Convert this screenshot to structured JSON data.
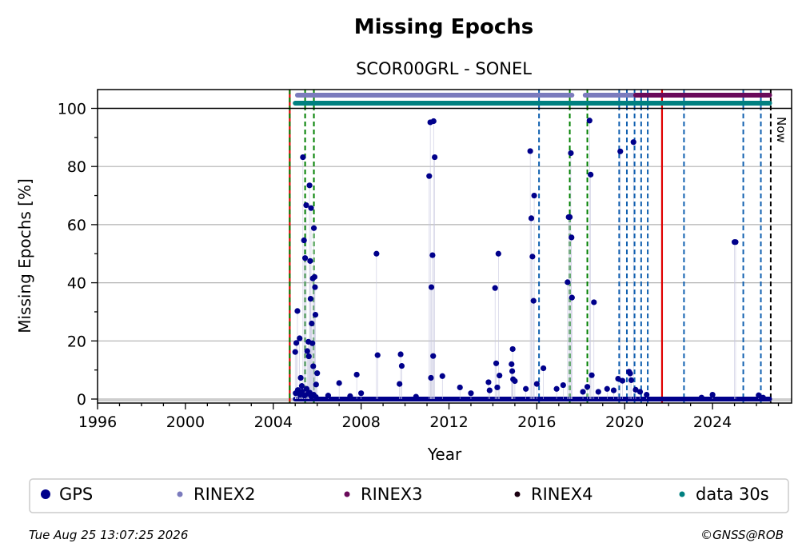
{
  "chart_data": {
    "type": "scatter",
    "title": "Missing Epochs",
    "subtitle": "SCOR00GRL - SONEL",
    "xlabel": "Year",
    "ylabel": "Missing Epochs [%]",
    "xlim": [
      1996,
      2027.6
    ],
    "ylim": [
      -1,
      107
    ],
    "x_ticks": [
      "1996",
      "2000",
      "2004",
      "2008",
      "2012",
      "2016",
      "2020",
      "2024"
    ],
    "y_ticks": [
      "0",
      "20",
      "40",
      "60",
      "80",
      "100"
    ],
    "grid": true,
    "legend_position": "bottom",
    "now_label": "Now",
    "now_year": 2026.65,
    "colors": {
      "gps": "#00008b",
      "rinex2": "#7b7bbd",
      "rinex3": "#6a0a5a",
      "rinex4": "#1a0010",
      "data30s": "#008080",
      "green_line": "#008000",
      "blue_line": "#1060b0",
      "red_line": "#e00000",
      "now_line": "#000000",
      "grid": "#b0b0b0"
    },
    "vlines": {
      "green_dashed": [
        2005.45,
        2005.85,
        2017.5,
        2018.3
      ],
      "blue_dashed": [
        2016.1,
        2019.75,
        2020.1,
        2020.45,
        2020.75,
        2021.05,
        2022.7,
        2025.4,
        2026.2
      ],
      "red_solid": [
        2004.75,
        2021.7
      ]
    },
    "bars": {
      "rinex2": [
        [
          2005.1,
          2017.6
        ],
        [
          2018.2,
          2021.7
        ]
      ],
      "rinex3": [
        [
          2020.5,
          2026.6
        ]
      ],
      "data30s": [
        [
          2005.0,
          2026.6
        ]
      ]
    },
    "series": [
      {
        "name": "GPS",
        "points": [
          [
            2005.0,
            16.2
          ],
          [
            2005.05,
            19.3
          ],
          [
            2005.1,
            30.3
          ],
          [
            2005.2,
            20.9
          ],
          [
            2005.25,
            7.3
          ],
          [
            2005.3,
            4.5
          ],
          [
            2005.35,
            83.2
          ],
          [
            2005.4,
            54.6
          ],
          [
            2005.45,
            48.5
          ],
          [
            2005.5,
            66.7
          ],
          [
            2005.55,
            16.5
          ],
          [
            2005.6,
            19.7
          ],
          [
            2005.62,
            14.7
          ],
          [
            2005.65,
            73.5
          ],
          [
            2005.68,
            47.5
          ],
          [
            2005.7,
            34.5
          ],
          [
            2005.72,
            65.7
          ],
          [
            2005.75,
            26.0
          ],
          [
            2005.78,
            19.2
          ],
          [
            2005.8,
            41.5
          ],
          [
            2005.82,
            11.3
          ],
          [
            2005.85,
            58.8
          ],
          [
            2005.88,
            42.0
          ],
          [
            2005.9,
            38.5
          ],
          [
            2005.92,
            29.0
          ],
          [
            2005.95,
            5.0
          ],
          [
            2006.0,
            8.9
          ],
          [
            2005.02,
            2.0
          ],
          [
            2005.12,
            3.1
          ],
          [
            2005.22,
            1.5
          ],
          [
            2005.32,
            2.6
          ],
          [
            2005.42,
            1.2
          ],
          [
            2005.52,
            3.5
          ],
          [
            2005.58,
            1.8
          ],
          [
            2005.66,
            2.2
          ],
          [
            2005.74,
            0.8
          ],
          [
            2005.84,
            1.5
          ],
          [
            2005.94,
            0.7
          ],
          [
            2006.5,
            1.2
          ],
          [
            2007.0,
            5.5
          ],
          [
            2007.5,
            1.0
          ],
          [
            2007.8,
            8.4
          ],
          [
            2008.0,
            2.0
          ],
          [
            2008.7,
            50.0
          ],
          [
            2008.75,
            15.1
          ],
          [
            2009.8,
            15.4
          ],
          [
            2009.85,
            11.4
          ],
          [
            2009.75,
            5.2
          ],
          [
            2010.5,
            0.8
          ],
          [
            2011.15,
            95.2
          ],
          [
            2011.1,
            76.7
          ],
          [
            2011.2,
            38.5
          ],
          [
            2011.25,
            49.5
          ],
          [
            2011.3,
            95.6
          ],
          [
            2011.35,
            83.2
          ],
          [
            2011.28,
            14.8
          ],
          [
            2011.18,
            7.3
          ],
          [
            2011.7,
            7.9
          ],
          [
            2012.5,
            4.0
          ],
          [
            2013.0,
            2.0
          ],
          [
            2013.8,
            5.8
          ],
          [
            2013.85,
            3.0
          ],
          [
            2014.1,
            38.2
          ],
          [
            2014.15,
            12.3
          ],
          [
            2014.2,
            4.0
          ],
          [
            2014.25,
            50.0
          ],
          [
            2014.3,
            8.1
          ],
          [
            2014.9,
            17.2
          ],
          [
            2014.85,
            12.0
          ],
          [
            2014.88,
            9.6
          ],
          [
            2014.92,
            6.8
          ],
          [
            2015.0,
            6.2
          ],
          [
            2015.5,
            3.5
          ],
          [
            2015.7,
            85.3
          ],
          [
            2015.75,
            62.2
          ],
          [
            2015.8,
            49.0
          ],
          [
            2015.85,
            33.8
          ],
          [
            2015.88,
            70.0
          ],
          [
            2016.0,
            5.2
          ],
          [
            2016.3,
            10.6
          ],
          [
            2016.9,
            3.5
          ],
          [
            2017.2,
            4.8
          ],
          [
            2017.4,
            40.2
          ],
          [
            2017.45,
            62.6
          ],
          [
            2017.5,
            62.6
          ],
          [
            2017.55,
            84.6
          ],
          [
            2017.58,
            55.6
          ],
          [
            2017.6,
            34.9
          ],
          [
            2018.1,
            2.5
          ],
          [
            2018.4,
            95.8
          ],
          [
            2018.45,
            77.2
          ],
          [
            2018.5,
            8.2
          ],
          [
            2018.6,
            33.3
          ],
          [
            2018.3,
            4.2
          ],
          [
            2018.8,
            2.5
          ],
          [
            2019.2,
            3.5
          ],
          [
            2019.5,
            3.0
          ],
          [
            2019.7,
            7.0
          ],
          [
            2019.8,
            85.2
          ],
          [
            2019.9,
            6.3
          ],
          [
            2020.2,
            9.4
          ],
          [
            2020.25,
            8.8
          ],
          [
            2020.3,
            6.5
          ],
          [
            2020.4,
            88.4
          ],
          [
            2020.5,
            3.2
          ],
          [
            2020.7,
            2.5
          ],
          [
            2021.0,
            1.5
          ],
          [
            2023.5,
            0.5
          ],
          [
            2024.0,
            1.5
          ],
          [
            2025.0,
            54.0
          ],
          [
            2025.05,
            54.0
          ],
          [
            2026.1,
            1.3
          ],
          [
            2026.3,
            0.5
          ]
        ],
        "baseline": [
          [
            2005.0,
            2026.6,
            0.0
          ]
        ]
      }
    ],
    "legend": [
      {
        "name": "GPS",
        "color": "#00008b"
      },
      {
        "name": "RINEX2",
        "color": "#7b7bbd"
      },
      {
        "name": "RINEX3",
        "color": "#6a0a5a"
      },
      {
        "name": "RINEX4",
        "color": "#1a0010"
      },
      {
        "name": "data 30s",
        "color": "#008080"
      }
    ]
  },
  "footer": {
    "timestamp": "Tue Aug 25 13:07:25 2026",
    "copyright": "©GNSS@ROB"
  }
}
